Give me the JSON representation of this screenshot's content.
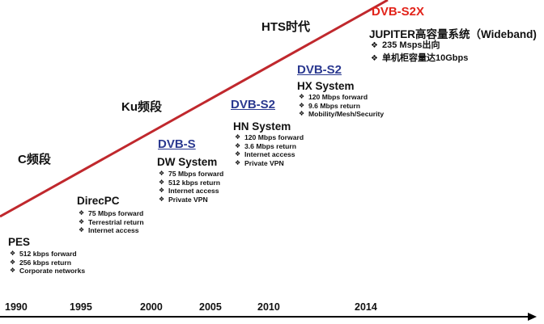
{
  "eras": {
    "c_band": "C频段",
    "ku_band": "Ku频段",
    "hts": "HTS时代"
  },
  "systems": [
    {
      "system": "PES",
      "standard": "",
      "features": [
        "512 kbps forward",
        "256 kbps return",
        "Corporate networks"
      ]
    },
    {
      "system": "DirecPC",
      "standard": "",
      "features": [
        "75 Mbps forward",
        "Terrestrial return",
        "Internet access"
      ]
    },
    {
      "system": "DW System",
      "standard": "DVB-S",
      "features": [
        "75 Mbps forward",
        "512 kbps return",
        "Internet access",
        "Private VPN"
      ]
    },
    {
      "system": "HN System",
      "standard": "DVB-S2",
      "features": [
        "120 Mbps forward",
        "3.6 Mbps return",
        "Internet access",
        "Private VPN"
      ]
    },
    {
      "system": "HX System",
      "standard": "DVB-S2",
      "features": [
        "120 Mbps forward",
        "9.6 Mbps return",
        "Mobility/Mesh/Security"
      ]
    },
    {
      "system": "JUPITER高容量系统（Wideband)",
      "standard": "DVB-S2X",
      "features": [
        "235 Msps出向",
        "单机柜容量达10Gbps"
      ]
    }
  ],
  "years": [
    "1990",
    "1995",
    "2000",
    "2005",
    "2010",
    "2014"
  ],
  "colors": {
    "trend_line": "#c0282d",
    "standard_blue": "#2b3990",
    "standard_red": "#e2231a",
    "text": "#111111"
  }
}
